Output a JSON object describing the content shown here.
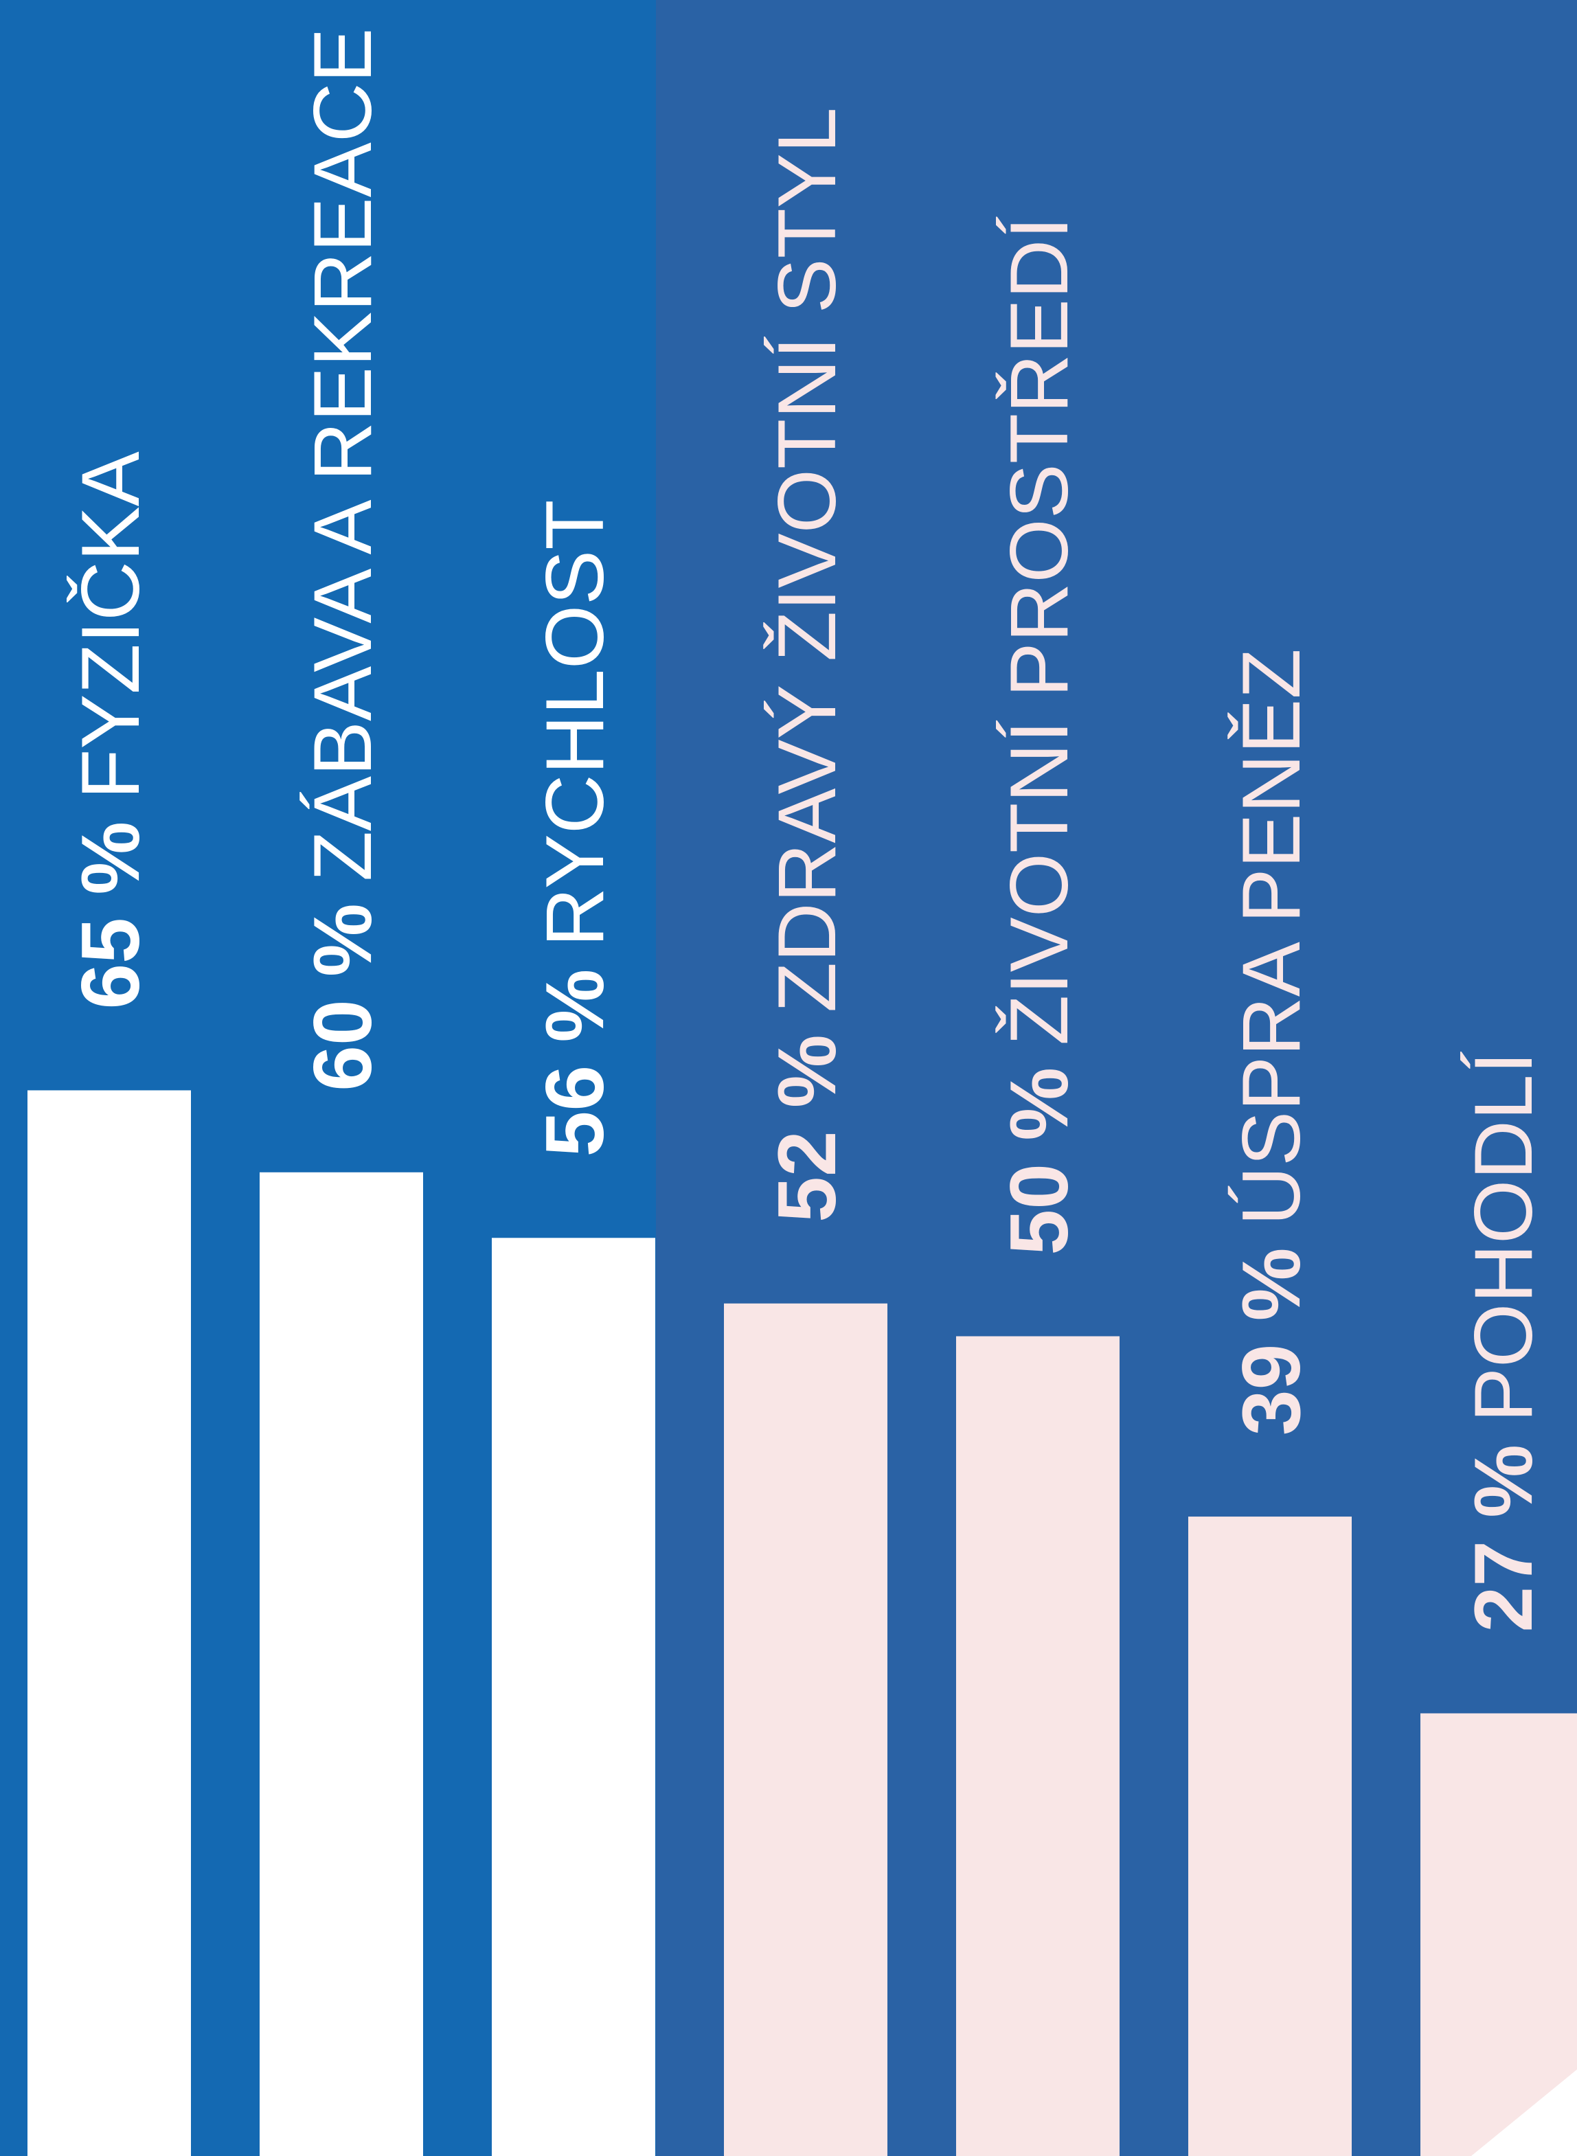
{
  "chart_data": {
    "type": "bar",
    "categories": [
      "FYZIČKA",
      "ZÁBAVA A REKREACE",
      "RYCHLOST",
      "ZDRAVÝ ŽIVOTNÍ STYL",
      "ŽIVOTNÍ PROSTŘEDÍ",
      "ÚSPRA PENĚZ",
      "POHODLÍ"
    ],
    "values": [
      65,
      60,
      56,
      52,
      50,
      39,
      27
    ],
    "value_labels": [
      "65 %",
      "60 %",
      "56 %",
      "52 %",
      "50 %",
      "39 %",
      "27 %"
    ],
    "colors": [
      "#ffffff",
      "#ffffff",
      "#ffffff",
      "#f9e6e6",
      "#f9e6e6",
      "#f9e6e6",
      "#f9e6e6"
    ]
  }
}
